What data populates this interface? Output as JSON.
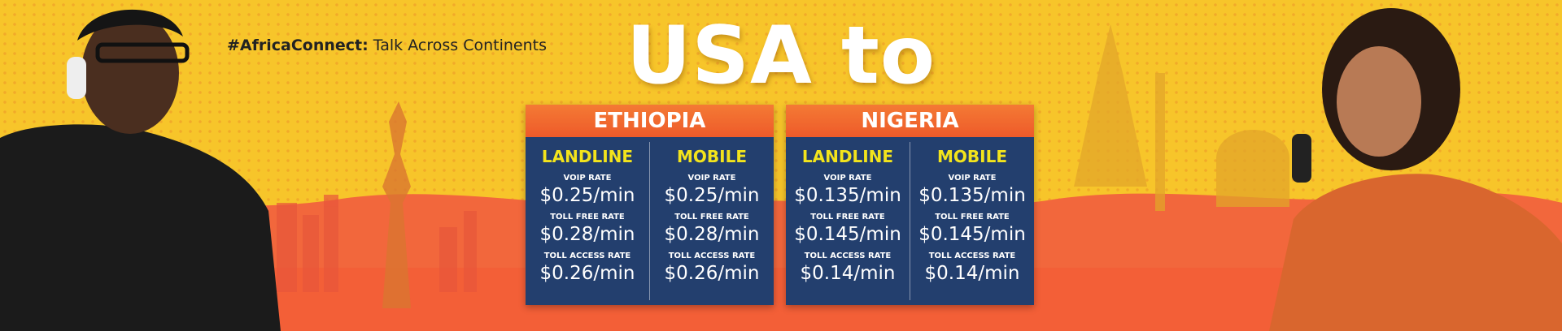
{
  "tagline": {
    "prefix": "#AfricaConnect:",
    "text": "Talk Across Continents"
  },
  "headline": "USA to",
  "countries": [
    {
      "name": "ETHIOPIA",
      "columns": [
        {
          "title": "LANDLINE",
          "rates": [
            {
              "label": "VOIP RATE",
              "price": "$0.25/min"
            },
            {
              "label": "TOLL FREE RATE",
              "price": "$0.28/min"
            },
            {
              "label": "TOLL ACCESS RATE",
              "price": "$0.26/min"
            }
          ]
        },
        {
          "title": "MOBILE",
          "rates": [
            {
              "label": "VOIP RATE",
              "price": "$0.25/min"
            },
            {
              "label": "TOLL FREE RATE",
              "price": "$0.28/min"
            },
            {
              "label": "TOLL ACCESS RATE",
              "price": "$0.26/min"
            }
          ]
        }
      ]
    },
    {
      "name": "NIGERIA",
      "columns": [
        {
          "title": "LANDLINE",
          "rates": [
            {
              "label": "VOIP RATE",
              "price": "$0.135/min"
            },
            {
              "label": "TOLL FREE RATE",
              "price": "$0.145/min"
            },
            {
              "label": "TOLL ACCESS RATE",
              "price": "$0.14/min"
            }
          ]
        },
        {
          "title": "MOBILE",
          "rates": [
            {
              "label": "VOIP RATE",
              "price": "$0.135/min"
            },
            {
              "label": "TOLL FREE RATE",
              "price": "$0.145/min"
            },
            {
              "label": "TOLL ACCESS RATE",
              "price": "$0.14/min"
            }
          ]
        }
      ]
    }
  ]
}
